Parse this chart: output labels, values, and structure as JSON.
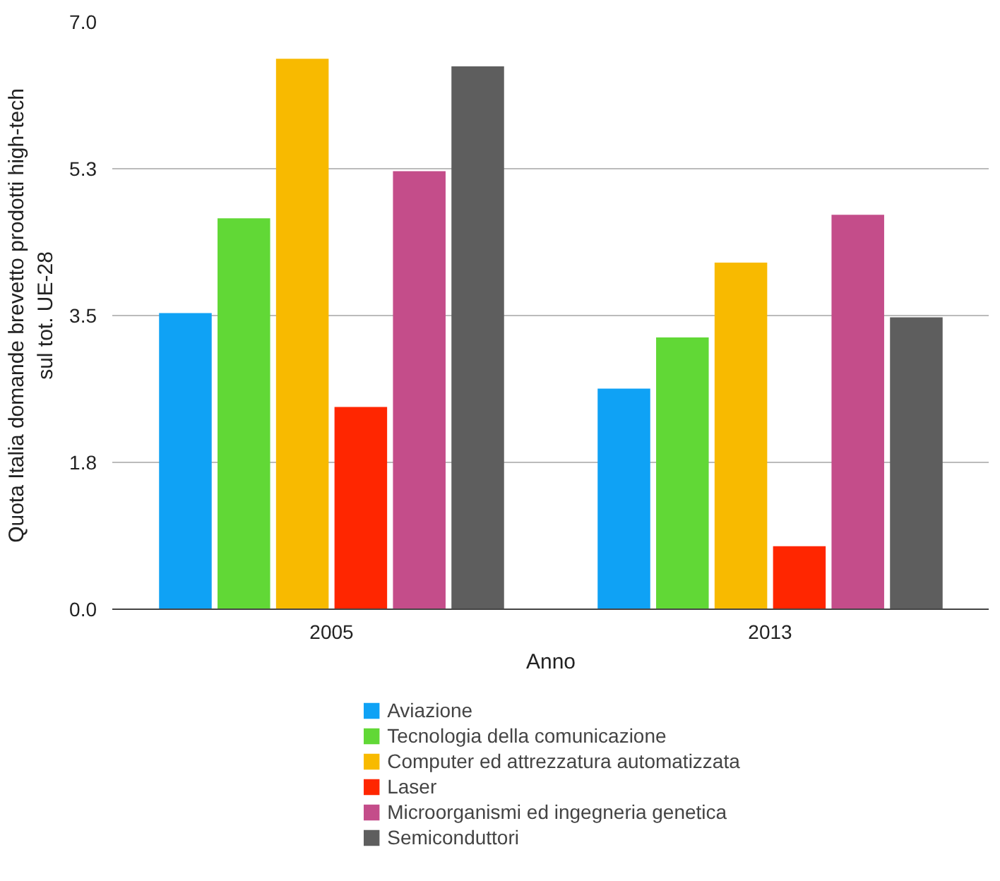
{
  "chart_data": {
    "type": "bar",
    "categories": [
      "2005",
      "2013"
    ],
    "xlabel": "Anno",
    "ylabel": "Quota Italia domande brevetto prodotti high-tech sul tot. UE-28",
    "ylim": [
      0,
      7
    ],
    "yticks": [
      {
        "value": 0,
        "label": "0.0"
      },
      {
        "value": 1.75,
        "label": "1.8"
      },
      {
        "value": 3.5,
        "label": "3.5"
      },
      {
        "value": 5.25,
        "label": "5.3"
      },
      {
        "value": 7,
        "label": "7.0"
      }
    ],
    "grid": "y",
    "legend": "bottom",
    "series": [
      {
        "name": "Aviazione",
        "color": "#0fa2f5",
        "values": [
          3.53,
          2.63
        ]
      },
      {
        "name": "Tecnologia della comunicazione",
        "color": "#61d836",
        "values": [
          4.66,
          3.24
        ]
      },
      {
        "name": "Computer ed attrezzatura automatizzata",
        "color": "#f8ba00",
        "values": [
          6.56,
          4.13
        ]
      },
      {
        "name": "Laser",
        "color": "#ff2600",
        "values": [
          2.41,
          0.75
        ]
      },
      {
        "name": "Microorganismi ed ingegneria genetica",
        "color": "#c44d8a",
        "values": [
          5.22,
          4.7
        ]
      },
      {
        "name": "Semiconduttori",
        "color": "#5e5e5e",
        "values": [
          6.47,
          3.48
        ]
      }
    ]
  }
}
